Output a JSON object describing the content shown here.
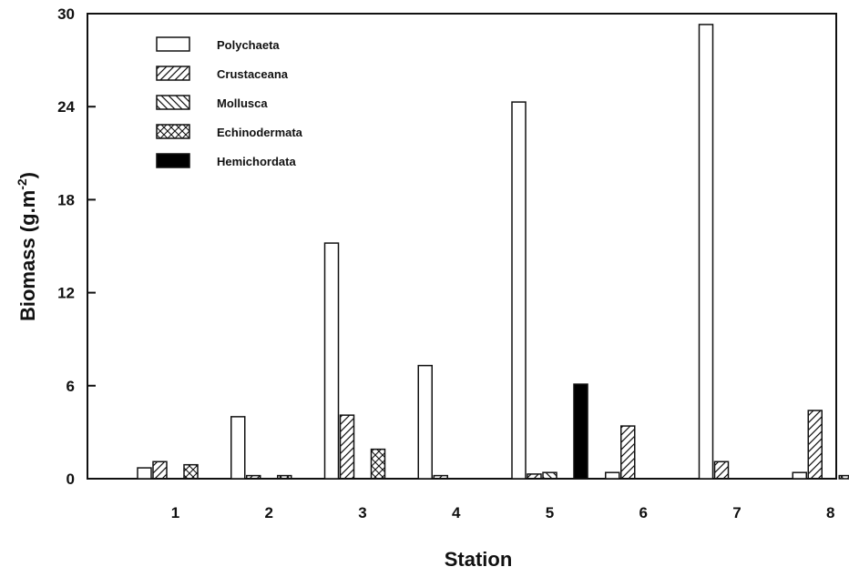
{
  "chart_data": {
    "type": "bar",
    "categories": [
      "1",
      "2",
      "3",
      "4",
      "5",
      "6",
      "7",
      "8"
    ],
    "series": [
      {
        "name": "Polychaeta",
        "pattern": "empty",
        "values": [
          0.7,
          4.0,
          15.2,
          7.3,
          24.3,
          0.4,
          29.3,
          0.4
        ]
      },
      {
        "name": "Crustaceana",
        "pattern": "diag-up",
        "values": [
          1.1,
          0.2,
          4.1,
          0.2,
          0.3,
          3.4,
          1.1,
          4.4
        ]
      },
      {
        "name": "Mollusca",
        "pattern": "diag-down",
        "values": [
          0,
          0,
          0,
          0,
          0.4,
          0,
          0,
          0
        ]
      },
      {
        "name": "Echinodermata",
        "pattern": "cross",
        "values": [
          0.9,
          0.2,
          1.9,
          0,
          0,
          0,
          0,
          0.2
        ]
      },
      {
        "name": "Hemichordata",
        "pattern": "solid",
        "values": [
          0,
          0,
          0,
          0,
          6.1,
          0,
          0,
          0.1
        ]
      }
    ],
    "ylim": [
      0,
      30
    ],
    "yticks": [
      "0",
      "6",
      "12",
      "18",
      "24",
      "30"
    ],
    "xlabel": "Station",
    "ylabel_main": "Biomass (g.m",
    "ylabel_sup": "-2",
    "ylabel_close": ")",
    "legend_position": "top-left",
    "grid": false,
    "colors": {
      "stroke": "#111111",
      "fill": "#ffffff",
      "solid": "#000000"
    }
  }
}
